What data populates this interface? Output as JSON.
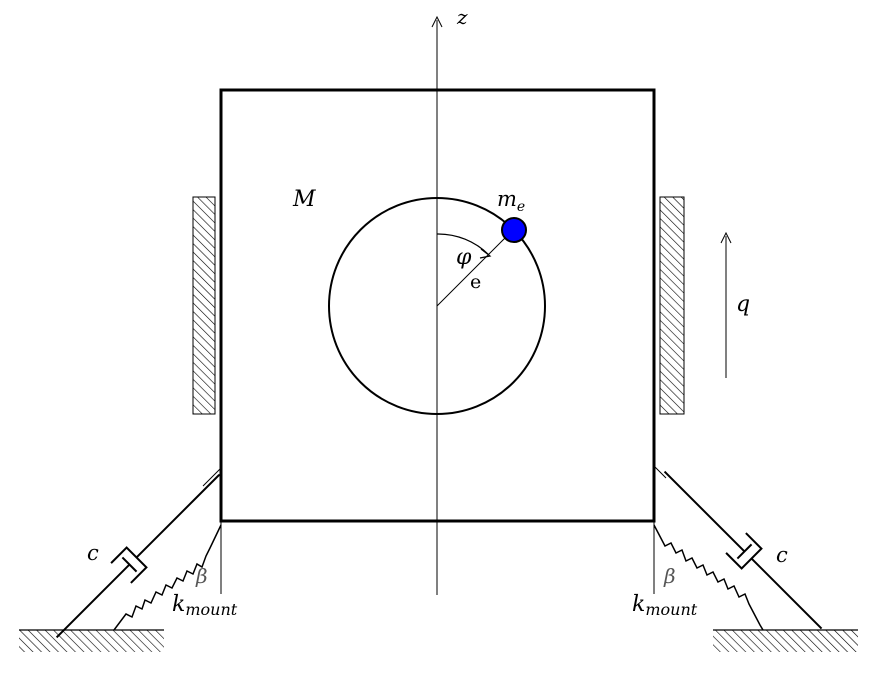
{
  "labels": {
    "z_axis": "z",
    "housing_mass": "M",
    "eccentric_mass": "m",
    "eccentric_mass_sub": "e",
    "phi": "φ",
    "eccentricity": "e",
    "displacement": "q",
    "damper_left": "c",
    "damper_right": "c",
    "angle_left": "β",
    "angle_right": "β",
    "stiffness_left": "k",
    "stiffness_left_sub": "mount",
    "stiffness_right": "k",
    "stiffness_right_sub": "mount"
  },
  "colors": {
    "line": "#000000",
    "eccentric_mass_fill": "#0000ff",
    "angle_label": "#555555"
  }
}
